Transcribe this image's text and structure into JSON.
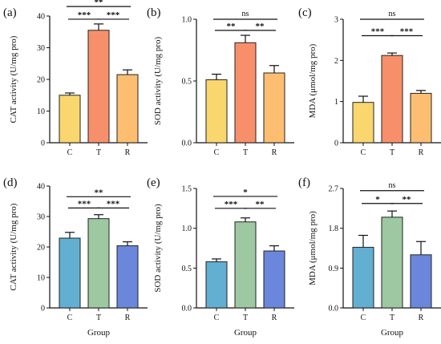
{
  "chart_data": [
    {
      "panel": "(a)",
      "type": "bar",
      "categories": [
        "C",
        "T",
        "R"
      ],
      "values": [
        15,
        35.5,
        21.5
      ],
      "errors": [
        0.7,
        2.0,
        1.5
      ],
      "colors": [
        "#F9D66E",
        "#F7906A",
        "#FDBE71"
      ],
      "ylabel": "CAT activity (U/mg pro)",
      "xlabel": "",
      "ylim": [
        0,
        40
      ],
      "yticks": [
        "0",
        "10",
        "20",
        "30",
        "40"
      ],
      "sig": [
        {
          "from": 0,
          "to": 2,
          "label": "**",
          "y": 43
        },
        {
          "from": 0,
          "to": 1,
          "label": "***",
          "y": 39
        },
        {
          "from": 1,
          "to": 2,
          "label": "***",
          "y": 39
        }
      ]
    },
    {
      "panel": "(b)",
      "type": "bar",
      "categories": [
        "C",
        "T",
        "R"
      ],
      "values": [
        0.51,
        0.81,
        0.565
      ],
      "errors": [
        0.045,
        0.06,
        0.06
      ],
      "colors": [
        "#F9D66E",
        "#F7906A",
        "#FDBE71"
      ],
      "ylabel": "SOD activity (U/mg pro)",
      "xlabel": "",
      "ylim": [
        0,
        1.0
      ],
      "yticks": [
        "0.0",
        "0.5",
        "1.0"
      ],
      "sig": [
        {
          "from": 0,
          "to": 2,
          "label": "ns",
          "y": 1.0
        },
        {
          "from": 0,
          "to": 1,
          "label": "**",
          "y": 0.91
        },
        {
          "from": 1,
          "to": 2,
          "label": "**",
          "y": 0.91
        }
      ]
    },
    {
      "panel": "(c)",
      "type": "bar",
      "categories": [
        "C",
        "T",
        "R"
      ],
      "values": [
        0.98,
        2.12,
        1.2
      ],
      "errors": [
        0.15,
        0.06,
        0.07
      ],
      "colors": [
        "#F9D66E",
        "#F7906A",
        "#FDBE71"
      ],
      "ylabel": "MDA (μmol/mg pro)",
      "xlabel": "",
      "ylim": [
        0,
        3
      ],
      "yticks": [
        "0",
        "1",
        "2",
        "3"
      ],
      "sig": [
        {
          "from": 0,
          "to": 2,
          "label": "ns",
          "y": 3.0
        },
        {
          "from": 0,
          "to": 1,
          "label": "***",
          "y": 2.6
        },
        {
          "from": 1,
          "to": 2,
          "label": "***",
          "y": 2.6
        }
      ]
    },
    {
      "panel": "(d)",
      "type": "bar",
      "categories": [
        "C",
        "T",
        "R"
      ],
      "values": [
        22.9,
        29.3,
        20.4
      ],
      "errors": [
        1.9,
        1.3,
        1.3
      ],
      "colors": [
        "#63AFD1",
        "#9DC8A2",
        "#6B87DC"
      ],
      "ylabel": "CAT activity (U/mg pro)",
      "xlabel": "Group",
      "ylim": [
        0,
        40
      ],
      "yticks": [
        "0",
        "10",
        "20",
        "30",
        "40"
      ],
      "sig": [
        {
          "from": 0,
          "to": 2,
          "label": "**",
          "y": 36.5
        },
        {
          "from": 0,
          "to": 1,
          "label": "***",
          "y": 32.8
        },
        {
          "from": 1,
          "to": 2,
          "label": "***",
          "y": 32.8
        }
      ]
    },
    {
      "panel": "(e)",
      "type": "bar",
      "categories": [
        "C",
        "T",
        "R"
      ],
      "values": [
        0.58,
        1.08,
        0.715
      ],
      "errors": [
        0.035,
        0.05,
        0.065
      ],
      "colors": [
        "#63AFD1",
        "#9DC8A2",
        "#6B87DC"
      ],
      "ylabel": "SOD activity (U/mg pro)",
      "xlabel": "Group",
      "ylim": [
        0,
        1.5
      ],
      "yticks": [
        "0.0",
        "0.5",
        "1.0",
        "1.5"
      ],
      "sig": [
        {
          "from": 0,
          "to": 2,
          "label": "*",
          "y": 1.4
        },
        {
          "from": 0,
          "to": 1,
          "label": "***",
          "y": 1.25
        },
        {
          "from": 1,
          "to": 2,
          "label": "**",
          "y": 1.25
        }
      ]
    },
    {
      "panel": "(f)",
      "type": "bar",
      "categories": [
        "C",
        "T",
        "R"
      ],
      "values": [
        1.37,
        2.05,
        1.2
      ],
      "errors": [
        0.27,
        0.14,
        0.3
      ],
      "colors": [
        "#63AFD1",
        "#9DC8A2",
        "#6B87DC"
      ],
      "ylabel": "MDA (μmol/mg pro)",
      "xlabel": "Group",
      "ylim": [
        0,
        2.7
      ],
      "yticks": [
        "0.0",
        "0.9",
        "1.8",
        "2.7"
      ],
      "sig": [
        {
          "from": 0,
          "to": 2,
          "label": "ns",
          "y": 2.65
        },
        {
          "from": 0,
          "to": 1,
          "label": "*",
          "y": 2.36
        },
        {
          "from": 1,
          "to": 2,
          "label": "**",
          "y": 2.36
        }
      ]
    }
  ]
}
